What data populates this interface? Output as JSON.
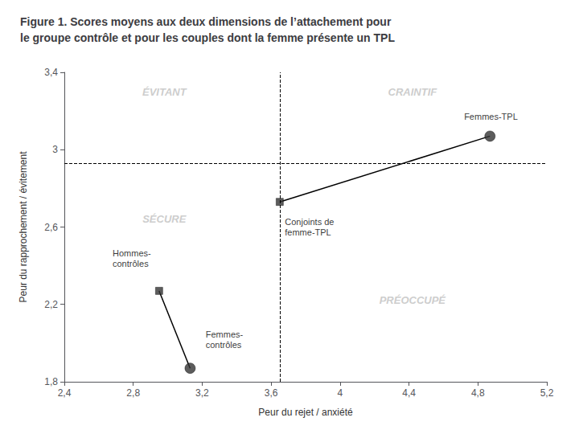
{
  "chart_data": {
    "type": "scatter",
    "title": "Figure 1. Scores moyens aux deux dimensions de l’attachement pour\nle groupe contrôle et pour les couples dont la femme présente un TPL",
    "xlabel": "Peur du rejet / anxiété",
    "ylabel": "Peur du rapprochement / évitement",
    "xlim": [
      2.4,
      5.2
    ],
    "ylim": [
      1.8,
      3.4
    ],
    "xticks": [
      {
        "value": 2.4,
        "label": "2,4"
      },
      {
        "value": 2.8,
        "label": "2,8"
      },
      {
        "value": 3.2,
        "label": "3,2"
      },
      {
        "value": 3.6,
        "label": "3,6"
      },
      4,
      {
        "value": 4.4,
        "label": "4,4"
      },
      {
        "value": 4.8,
        "label": "4,8"
      },
      {
        "value": 5.2,
        "label": "5,2"
      }
    ],
    "yticks": [
      {
        "value": 1.8,
        "label": "1,8"
      },
      {
        "value": 2.2,
        "label": "2,2"
      },
      {
        "value": 2.6,
        "label": "2,6"
      },
      3,
      {
        "value": 3.4,
        "label": "3,4"
      }
    ],
    "grid": false,
    "series": [
      {
        "type": "line",
        "color": "#000000",
        "x": [
          2.95,
          3.13
        ],
        "values": [
          2.27,
          1.87
        ]
      },
      {
        "type": "line",
        "color": "#000000",
        "x": [
          3.65,
          4.87
        ],
        "values": [
          2.73,
          3.07
        ]
      },
      {
        "type": "scatter",
        "marker": "square",
        "color": "#333333",
        "x": [
          2.95,
          3.65
        ],
        "values": [
          2.27,
          2.73
        ]
      },
      {
        "type": "scatter",
        "marker": "circle",
        "color": "#333333",
        "x": [
          3.13,
          4.87
        ],
        "values": [
          1.87,
          3.07
        ]
      }
    ],
    "dividers": [
      {
        "axis": "x",
        "value": 3.65,
        "line_style": "dashed",
        "color": "#000000"
      },
      {
        "axis": "y",
        "value": 2.93,
        "line_style": "dashed",
        "color": "#000000"
      }
    ],
    "quadrant_labels": [
      {
        "text": "ÉVITANT",
        "x": 2.98,
        "y": 3.3,
        "color": "#c0c0c0"
      },
      {
        "text": "CRAINTIF",
        "x": 4.42,
        "y": 3.3,
        "color": "#c0c0c0"
      },
      {
        "text": "SÉCURE",
        "x": 2.98,
        "y": 2.64,
        "color": "#c0c0c0"
      },
      {
        "text": "PRÉOCCUPÉ",
        "x": 4.42,
        "y": 2.22,
        "color": "#c0c0c0"
      }
    ],
    "annotations": [
      {
        "text": "Hommes-\ncontrôles",
        "x": 2.68,
        "y": 2.44
      },
      {
        "text": "Femmes-\ncontrôles",
        "x": 3.22,
        "y": 2.02
      },
      {
        "text": "Conjoints de\nfemme-TPL",
        "x": 3.68,
        "y": 2.6
      },
      {
        "text": "Femmes-TPL",
        "x": 4.72,
        "y": 3.17
      }
    ]
  }
}
